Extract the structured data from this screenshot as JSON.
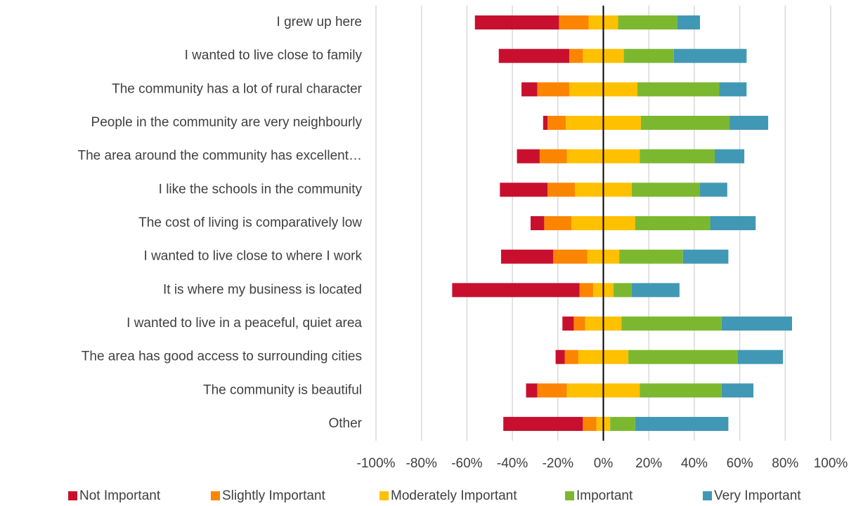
{
  "chart_data": {
    "type": "diverging_stacked_bar",
    "categories": [
      "I grew up here",
      "I wanted to live close to family",
      "The community has a lot of rural character",
      "People in the community are very neighbourly",
      "The area around the community has excellent…",
      "I like the schools in the community",
      "The cost of living is comparatively low",
      "I wanted to live close to where I work",
      "It is where my business is located",
      "I wanted to live in a peaceful, quiet area",
      "The area has good access to surrounding cities",
      "The community is beautiful",
      "Other"
    ],
    "series": [
      {
        "name": "Not Important",
        "color": "#c8102e",
        "values": [
          37,
          31,
          7,
          2,
          10,
          21,
          6,
          23,
          56,
          5,
          4,
          5,
          35
        ]
      },
      {
        "name": "Slightly Important",
        "color": "#fb8500",
        "values": [
          13,
          6,
          14,
          8,
          12,
          12,
          12,
          15,
          6,
          5,
          6,
          13,
          6
        ]
      },
      {
        "name": "Moderately Important",
        "color": "#ffc000",
        "values": [
          13,
          18,
          30,
          33,
          32,
          25,
          28,
          14,
          9,
          16,
          22,
          32,
          6
        ]
      },
      {
        "name": "Important",
        "color": "#7cb82f",
        "values": [
          26,
          22,
          36,
          39,
          33,
          30,
          33,
          28,
          8,
          44,
          48,
          36,
          11
        ]
      },
      {
        "name": "Very Important",
        "color": "#4198b5",
        "values": [
          10,
          32,
          12,
          17,
          13,
          12,
          20,
          20,
          21,
          31,
          20,
          14,
          41
        ]
      }
    ],
    "xlim": [
      -100,
      100
    ],
    "xticks": [
      {
        "value": -100,
        "label": "-100%"
      },
      {
        "value": -80,
        "label": "-80%"
      },
      {
        "value": -60,
        "label": "-60%"
      },
      {
        "value": -40,
        "label": "-40%"
      },
      {
        "value": -20,
        "label": "-20%"
      },
      {
        "value": 0,
        "label": "0%"
      },
      {
        "value": 20,
        "label": "20%"
      },
      {
        "value": 40,
        "label": "40%"
      },
      {
        "value": 60,
        "label": "60%"
      },
      {
        "value": 80,
        "label": "80%"
      },
      {
        "value": 100,
        "label": "100%"
      }
    ],
    "grid": true,
    "legend": "bottom"
  }
}
